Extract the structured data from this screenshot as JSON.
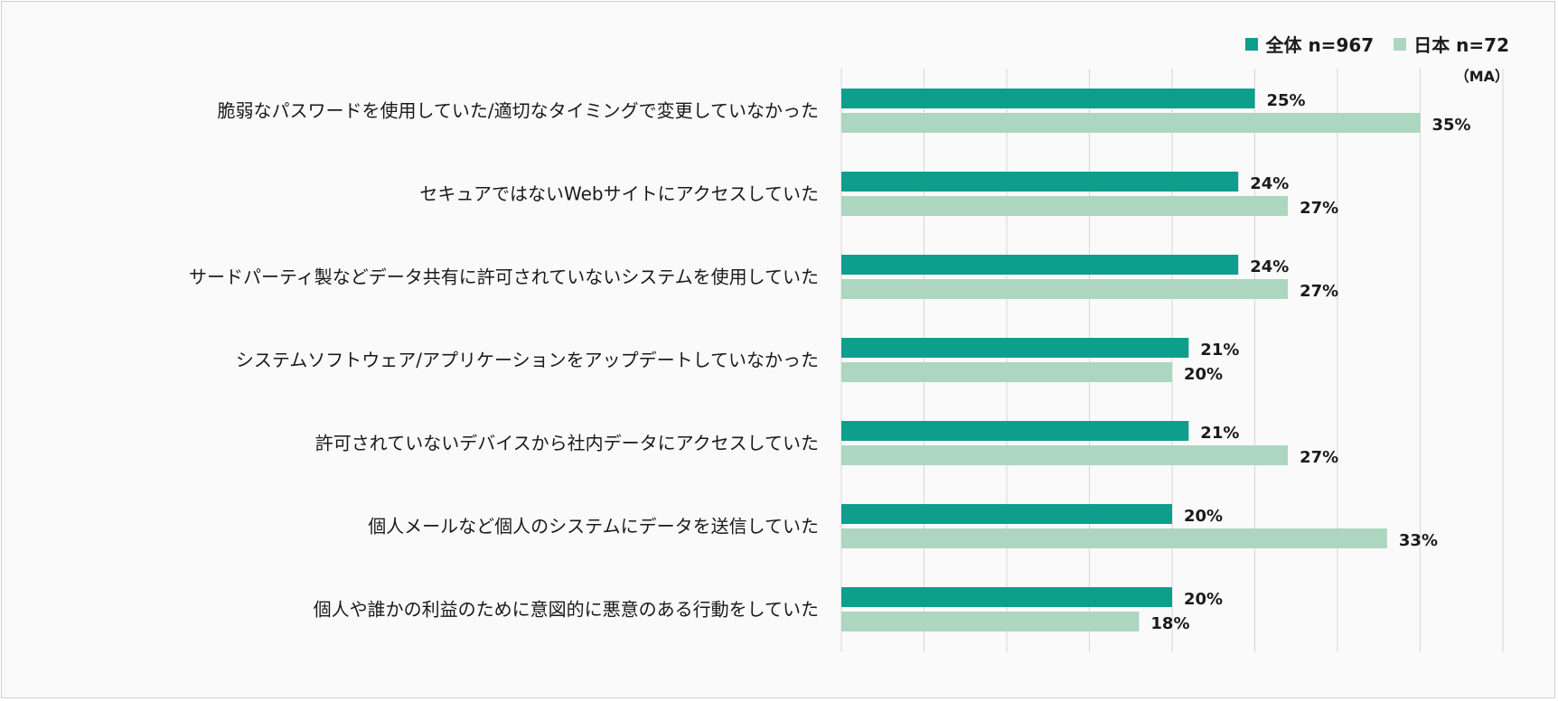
{
  "chart_data": {
    "type": "bar",
    "orientation": "horizontal",
    "note": "（MA）",
    "categories": [
      "脆弱なパスワードを使用していた/適切なタイミングで変更していなかった",
      "セキュアではないWebサイトにアクセスしていた",
      "サードパーティ製などデータ共有に許可されていないシステムを使用していた",
      "システムソフトウェア/アプリケーションをアップデートしていなかった",
      "許可されていないデバイスから社内データにアクセスしていた",
      "個人メールなど個人のシステムにデータを送信していた",
      "個人や誰かの利益のために意図的に悪意のある行動をしていた"
    ],
    "series": [
      {
        "name": "全体 n=967",
        "color": "#0e9e8c",
        "values": [
          25,
          24,
          24,
          21,
          21,
          20,
          20
        ]
      },
      {
        "name": "日本 n=72",
        "color": "#acd6c0",
        "values": [
          35,
          27,
          27,
          20,
          27,
          33,
          18
        ]
      }
    ],
    "value_suffix": "%",
    "xlim": [
      0,
      40
    ],
    "grid": true,
    "legend_position": "top-right"
  }
}
